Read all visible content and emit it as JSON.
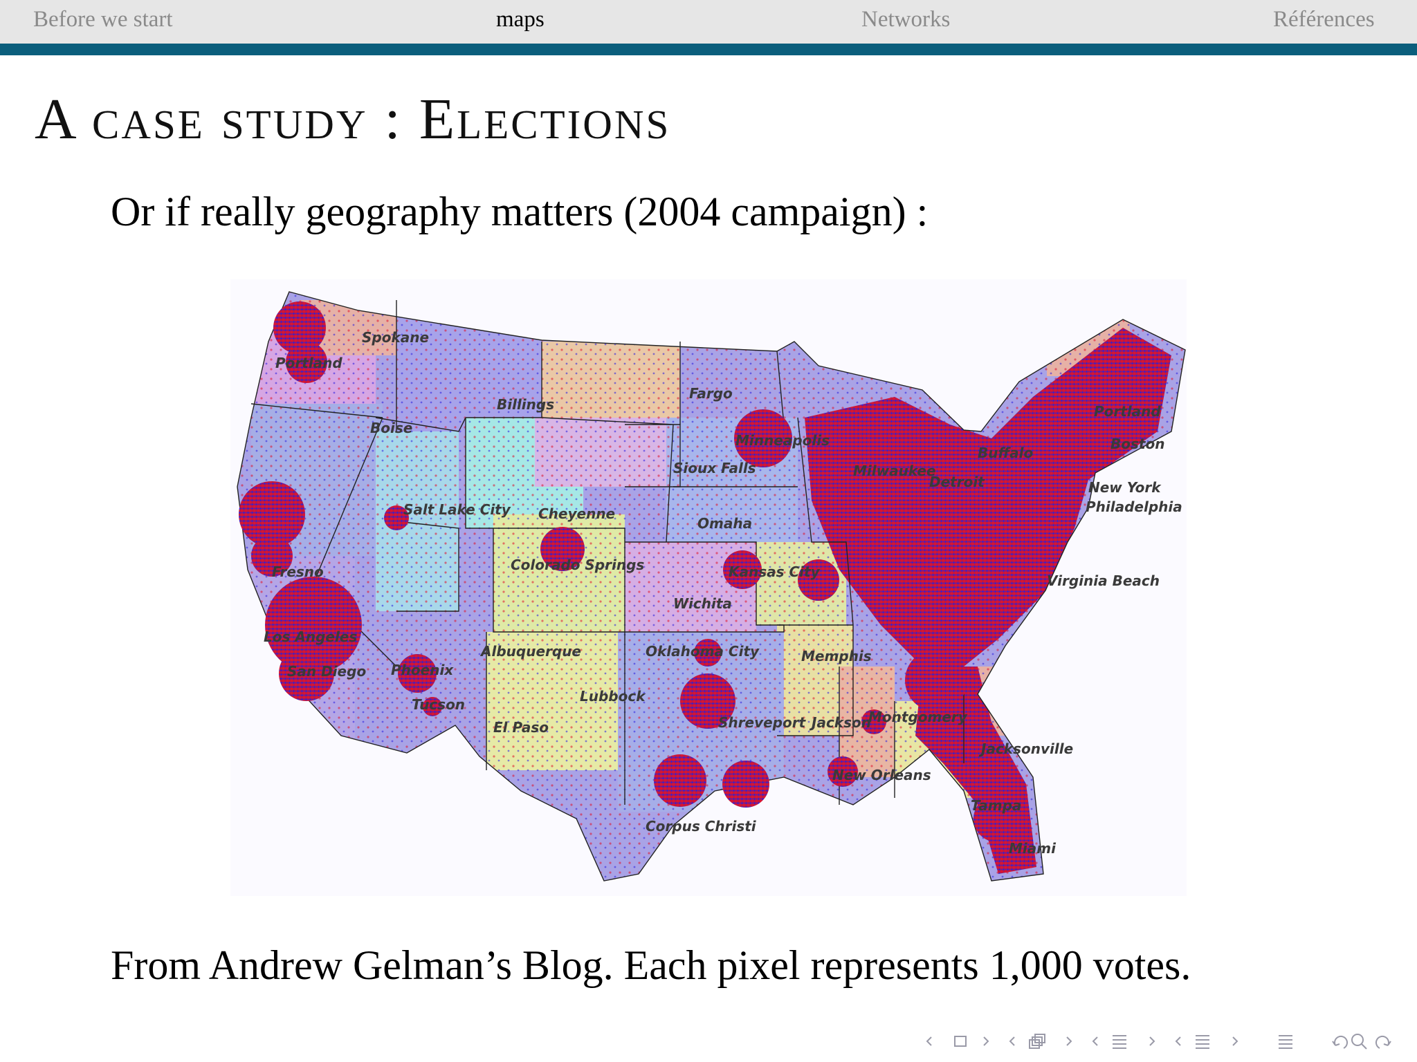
{
  "nav": {
    "items": [
      {
        "label": "Before we start",
        "active": false
      },
      {
        "label": "maps",
        "active": true
      },
      {
        "label": "Networks",
        "active": false
      },
      {
        "label": "Références",
        "active": false
      }
    ],
    "bar_color": "#e6e6e6",
    "rule_color": "#0b5e7c"
  },
  "slide": {
    "title": "A case study : Elections",
    "lead": "Or if really geography matters (2004 campaign) :",
    "caption": "From Andrew Gelman’s Blog. Each pixel represents 1,000 votes."
  },
  "map": {
    "vote_colors": {
      "republican": "#e0102a",
      "democrat": "#2a1ee0"
    },
    "city_labels": [
      "Spokane",
      "Portland",
      "Billings",
      "Fargo",
      "Boise",
      "Sioux Falls",
      "Salt Lake City",
      "Cheyenne",
      "Omaha",
      "Colorado Springs",
      "Kansas City",
      "Wichita",
      "Fresno",
      "Los Angeles",
      "San Diego",
      "Albuquerque",
      "Oklahoma City",
      "Phoenix",
      "Tucson",
      "Lubbock",
      "El Paso",
      "Shreveport",
      "Jackson",
      "Montgomery",
      "Memphis",
      "New Orleans",
      "Corpus Christi",
      "Jacksonville",
      "Tampa",
      "Miami",
      "Buffalo",
      "Portland",
      "Boston",
      "Detroit",
      "Milwaukee",
      "New York",
      "Philadelphia",
      "Virginia Beach",
      "Minneapolis"
    ]
  },
  "controls": {
    "icons": [
      "frame-prev-icon",
      "frame-icon",
      "frame-next-icon",
      "subsection-prev-icon",
      "subsection-icon",
      "subsection-next-icon",
      "section-prev-icon",
      "section-icon",
      "section-next-icon",
      "doc-prev-icon",
      "doc-icon",
      "doc-next-icon",
      "toc-icon",
      "undo-icon",
      "search-icon",
      "redo-icon"
    ]
  }
}
